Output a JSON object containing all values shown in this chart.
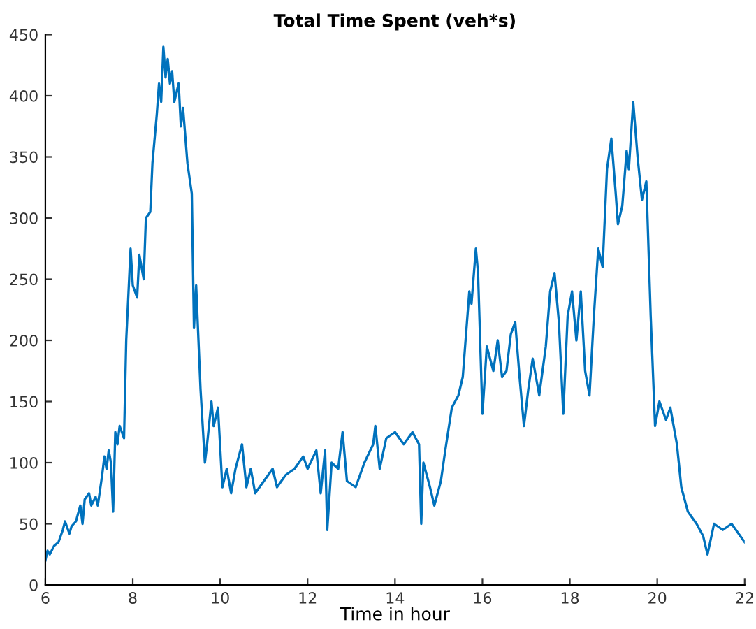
{
  "chart_data": {
    "type": "line",
    "title": "Total Time Spent (veh*s)",
    "xlabel": "Time in hour",
    "xlim": [
      6,
      22
    ],
    "xticks": [
      6,
      8,
      10,
      12,
      14,
      16,
      18,
      20,
      22
    ],
    "ylim": [
      0,
      450
    ],
    "yticks": [
      0,
      50,
      100,
      150,
      200,
      250,
      300,
      350,
      400,
      450
    ],
    "grid": false,
    "series": [
      {
        "color": "#0072bd",
        "x": [
          6.0,
          6.05,
          6.1,
          6.2,
          6.3,
          6.4,
          6.45,
          6.55,
          6.6,
          6.7,
          6.8,
          6.85,
          6.9,
          7.0,
          7.05,
          7.15,
          7.2,
          7.3,
          7.35,
          7.4,
          7.45,
          7.5,
          7.55,
          7.6,
          7.65,
          7.7,
          7.8,
          7.85,
          7.95,
          8.0,
          8.1,
          8.15,
          8.25,
          8.3,
          8.4,
          8.45,
          8.55,
          8.6,
          8.65,
          8.7,
          8.75,
          8.8,
          8.85,
          8.9,
          8.95,
          9.05,
          9.1,
          9.15,
          9.25,
          9.35,
          9.4,
          9.45,
          9.55,
          9.65,
          9.7,
          9.8,
          9.85,
          9.95,
          10.05,
          10.15,
          10.25,
          10.35,
          10.5,
          10.6,
          10.7,
          10.8,
          11.0,
          11.2,
          11.3,
          11.5,
          11.7,
          11.9,
          12.0,
          12.2,
          12.3,
          12.4,
          12.45,
          12.55,
          12.7,
          12.8,
          12.9,
          13.1,
          13.3,
          13.5,
          13.55,
          13.65,
          13.8,
          14.0,
          14.2,
          14.4,
          14.55,
          14.6,
          14.65,
          14.8,
          14.9,
          15.05,
          15.15,
          15.3,
          15.45,
          15.55,
          15.7,
          15.75,
          15.85,
          15.9,
          16.0,
          16.1,
          16.25,
          16.35,
          16.45,
          16.55,
          16.65,
          16.75,
          16.85,
          16.95,
          17.05,
          17.15,
          17.3,
          17.45,
          17.55,
          17.65,
          17.75,
          17.85,
          17.95,
          18.05,
          18.15,
          18.25,
          18.35,
          18.45,
          18.55,
          18.65,
          18.75,
          18.85,
          18.95,
          19.05,
          19.1,
          19.2,
          19.3,
          19.35,
          19.45,
          19.55,
          19.65,
          19.75,
          19.85,
          19.95,
          20.05,
          20.2,
          20.3,
          20.45,
          20.55,
          20.7,
          20.9,
          21.05,
          21.15,
          21.3,
          21.5,
          21.7,
          21.9,
          22.0
        ],
        "values": [
          20,
          28,
          25,
          32,
          35,
          45,
          52,
          42,
          48,
          52,
          65,
          50,
          70,
          75,
          65,
          72,
          65,
          90,
          105,
          95,
          110,
          100,
          60,
          125,
          115,
          130,
          120,
          200,
          275,
          245,
          235,
          270,
          250,
          300,
          305,
          345,
          385,
          410,
          395,
          440,
          415,
          430,
          410,
          420,
          395,
          410,
          375,
          390,
          345,
          320,
          210,
          245,
          160,
          100,
          115,
          150,
          130,
          145,
          80,
          95,
          75,
          95,
          115,
          80,
          95,
          75,
          85,
          95,
          80,
          90,
          95,
          105,
          95,
          110,
          75,
          110,
          45,
          100,
          95,
          125,
          85,
          80,
          100,
          115,
          130,
          95,
          120,
          125,
          115,
          125,
          115,
          50,
          100,
          80,
          65,
          85,
          110,
          145,
          155,
          170,
          240,
          230,
          275,
          255,
          140,
          195,
          175,
          200,
          170,
          175,
          205,
          215,
          170,
          130,
          160,
          185,
          155,
          195,
          240,
          255,
          215,
          140,
          220,
          240,
          200,
          240,
          175,
          155,
          220,
          275,
          260,
          340,
          365,
          320,
          295,
          310,
          355,
          340,
          395,
          350,
          315,
          330,
          220,
          130,
          150,
          135,
          145,
          115,
          80,
          60,
          50,
          40,
          25,
          50,
          45,
          50,
          40,
          35
        ]
      }
    ]
  }
}
